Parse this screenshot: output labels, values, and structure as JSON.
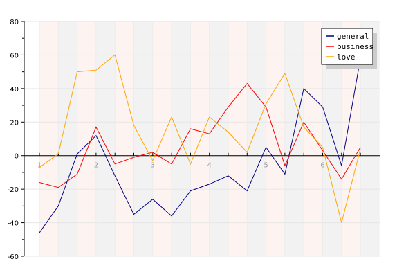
{
  "chart_data": {
    "type": "line",
    "title": "",
    "xlabel": "",
    "ylabel": "",
    "x": [
      1,
      1.333,
      1.667,
      2,
      2.333,
      2.667,
      3,
      3.333,
      3.667,
      4,
      4.333,
      4.667,
      5,
      5.333,
      5.667,
      6,
      6.333,
      6.667
    ],
    "x_ticks": [
      1,
      2,
      3,
      4,
      5,
      6
    ],
    "x_tick_labels": [
      "1",
      "2",
      "3",
      "4",
      "5",
      "6"
    ],
    "ylim": [
      -60,
      80
    ],
    "y_ticks": [
      -60,
      -40,
      -20,
      0,
      20,
      40,
      60,
      80
    ],
    "y_tick_labels": [
      "-60",
      "-40",
      "-20",
      "0",
      "20",
      "40",
      "60",
      "80"
    ],
    "grid": true,
    "legend_position": "top-right",
    "series": [
      {
        "name": "general",
        "color": "#000080",
        "values": [
          -46,
          -30,
          1,
          12,
          -12,
          -35,
          -26,
          -36,
          -21,
          -17,
          -12,
          -21,
          5,
          -11,
          40,
          29,
          -6,
          58
        ]
      },
      {
        "name": "business",
        "color": "#ff0000",
        "values": [
          -16,
          -19,
          -11,
          17,
          -5,
          -1,
          2,
          -5,
          16,
          13,
          29,
          43,
          29,
          -6,
          20,
          3,
          -14,
          5
        ]
      },
      {
        "name": "love",
        "color": "#ffa500",
        "values": [
          -7,
          1,
          50,
          51,
          60,
          18,
          -3,
          23,
          -5,
          23,
          14,
          2,
          31,
          49,
          17,
          5,
          -40,
          4
        ]
      }
    ]
  }
}
